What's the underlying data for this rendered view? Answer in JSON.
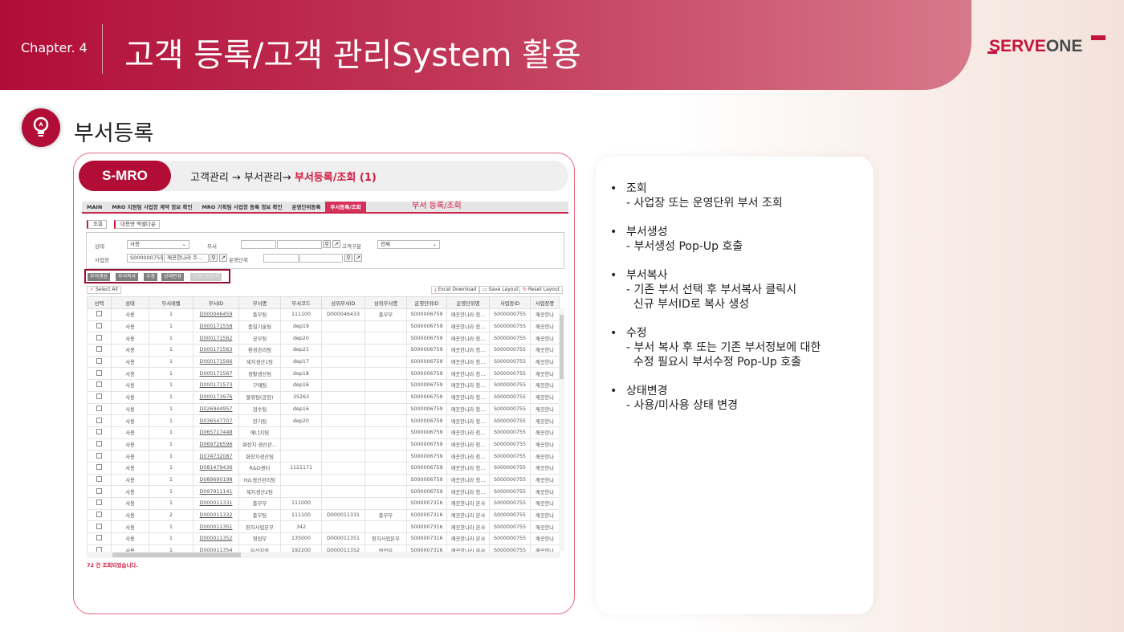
{
  "header": {
    "chapter": "Chapter. 4",
    "title": "고객 등록/고객 관리System 활용",
    "logo": "SERVEONE"
  },
  "section": {
    "icon": "lightbulb-icon",
    "title": "부서등록"
  },
  "panel": {
    "brand": "S-MRO",
    "breadcrumb_prefix": "고객관리 → 부서관리→ ",
    "breadcrumb_current": "부서등록/조회 (1)"
  },
  "app": {
    "tabs": [
      "MAIN",
      "MRO 지원팀 사업장 계약 정보 확인",
      "MRO 기획팀 사업장 등록 정보 확인",
      "운영단위등록",
      "부서등록/조회"
    ],
    "tab_note": "부서 등록/조회",
    "top_buttons": [
      "조회",
      "대용량 엑셀다운"
    ],
    "form": {
      "status_label": "상태",
      "status_value": "사용",
      "dept_label": "부서",
      "custtype_label": "고객구분",
      "custtype_value": "전체",
      "site_label": "사업장",
      "site_id": "S000000755",
      "site_name": "깨끗한나라 주…",
      "opunit_label": "운영단위"
    },
    "actions": [
      "부서생성",
      "부서복사",
      "수정",
      "상태변경",
      "운영단위등록"
    ],
    "select_all": "Select All",
    "grid_buttons": [
      "Excel Download",
      "Save Layout",
      "Reset Layout"
    ],
    "columns": [
      "선택",
      "상태",
      "부서레벨",
      "부서ID",
      "부서명",
      "부서코드",
      "상위부서ID",
      "상위부서명",
      "운영단위ID",
      "운영단위명",
      "사업장ID",
      "사업장명"
    ],
    "rows": [
      [
        "사용",
        "1",
        "D000046459",
        "총무팀",
        "111100",
        "D000046433",
        "총무부",
        "S000006759",
        "깨끗한나라 청…",
        "S000000755",
        "깨끗한나"
      ],
      [
        "사용",
        "1",
        "D000171558",
        "품질기술팀",
        "dep19",
        "",
        "",
        "S000006759",
        "깨끗한나라 청…",
        "S000000755",
        "깨끗한나"
      ],
      [
        "사용",
        "1",
        "D000171562",
        "공무팀",
        "dep20",
        "",
        "",
        "S000006759",
        "깨끗한나라 청…",
        "S000000755",
        "깨끗한나"
      ],
      [
        "사용",
        "1",
        "D000171563",
        "환경관리팀",
        "dep21",
        "",
        "",
        "S000006759",
        "깨끗한나라 청…",
        "S000000755",
        "깨끗한나"
      ],
      [
        "사용",
        "1",
        "D000171566",
        "제지생산1팀",
        "dep17",
        "",
        "",
        "S000006759",
        "깨끗한나라 청…",
        "S000000755",
        "깨끗한나"
      ],
      [
        "사용",
        "1",
        "D000171567",
        "생활생산팀",
        "dep18",
        "",
        "",
        "S000006759",
        "깨끗한나라 청…",
        "S000000755",
        "깨끗한나"
      ],
      [
        "사용",
        "1",
        "D000171573",
        "구매팀",
        "dep16",
        "",
        "",
        "S000006759",
        "깨끗한나라 청…",
        "S000000755",
        "깨끗한나"
      ],
      [
        "사용",
        "1",
        "D000173976",
        "물류팀(공장)",
        "35263",
        "",
        "",
        "S000006759",
        "깨끗한나라 청…",
        "S000000755",
        "깨끗한나"
      ],
      [
        "사용",
        "1",
        "D026944957",
        "검수팀",
        "dep16",
        "",
        "",
        "S000006759",
        "깨끗한나라 청…",
        "S000000755",
        "깨끗한나"
      ],
      [
        "사용",
        "1",
        "D036547707",
        "전기팀",
        "dep20",
        "",
        "",
        "S000006759",
        "깨끗한나라 청…",
        "S000000755",
        "깨끗한나"
      ],
      [
        "사용",
        "1",
        "D065717448",
        "에너지팀",
        "",
        "",
        "",
        "S000006759",
        "깨끗한나라 청…",
        "S000000755",
        "깨끗한나"
      ],
      [
        "사용",
        "1",
        "D069726596",
        "화장지 생산관…",
        "",
        "",
        "",
        "S000006759",
        "깨끗한나라 청…",
        "S000000755",
        "깨끗한나"
      ],
      [
        "사용",
        "1",
        "D074732087",
        "화장지생산팀",
        "",
        "",
        "",
        "S000006759",
        "깨끗한나라 청…",
        "S000000755",
        "깨끗한나"
      ],
      [
        "사용",
        "1",
        "D081479436",
        "R&D센터",
        "1121171",
        "",
        "",
        "S000006759",
        "깨끗한나라 청…",
        "S000000755",
        "깨끗한나"
      ],
      [
        "사용",
        "1",
        "D089690198",
        "H/L생산관리팀",
        "",
        "",
        "",
        "S000006759",
        "깨끗한나라 청…",
        "S000000755",
        "깨끗한나"
      ],
      [
        "사용",
        "1",
        "D097911141",
        "제지생산2팀",
        "",
        "",
        "",
        "S000006759",
        "깨끗한나라 청…",
        "S000000755",
        "깨끗한나"
      ],
      [
        "사용",
        "1",
        "D000011331",
        "총무부",
        "111000",
        "",
        "",
        "S000007316",
        "깨끗한나라 본사",
        "S000000755",
        "깨끗한나"
      ],
      [
        "사용",
        "2",
        "D000011332",
        "총무팀",
        "111100",
        "D000011331",
        "총무부",
        "S000007316",
        "깨끗한나라 본사",
        "S000000755",
        "깨끗한나"
      ],
      [
        "사용",
        "1",
        "D000011351",
        "판지사업본부",
        "342",
        "",
        "",
        "S000007316",
        "깨끗한나라 본사",
        "S000000755",
        "깨끗한나"
      ],
      [
        "사용",
        "1",
        "D000011352",
        "영업부",
        "135000",
        "D000011351",
        "판지사업본부",
        "S000007316",
        "깨끗한나라 본사",
        "S000000755",
        "깨끗한나"
      ],
      [
        "사용",
        "1",
        "D000011354",
        "부산지점",
        "192200",
        "D000011352",
        "영업부",
        "S000007316",
        "깨끗한나라 본사",
        "S000000755",
        "깨끗한나"
      ]
    ],
    "result_count": "72 건 조회되었습니다."
  },
  "notes": [
    {
      "title": "조회",
      "desc": "- 사업장 또는 운영단위 부서 조회"
    },
    {
      "title": "부서생성",
      "desc": "- 부서생성 Pop-Up 호출"
    },
    {
      "title": "부서복사",
      "desc": "- 기존 부서 선택 후 부서복사 클릭시\n  신규 부서ID로 복사 생성"
    },
    {
      "title": "수정",
      "desc": "- 부서 복사 후 또는 기존 부서정보에 대한\n  수정 필요시 부서수정 Pop-Up 호출"
    },
    {
      "title": "상태변경",
      "desc": "- 사용/미사용 상태 변경"
    }
  ],
  "colors": {
    "brand": "#b10d36",
    "accent": "#d0183f"
  }
}
